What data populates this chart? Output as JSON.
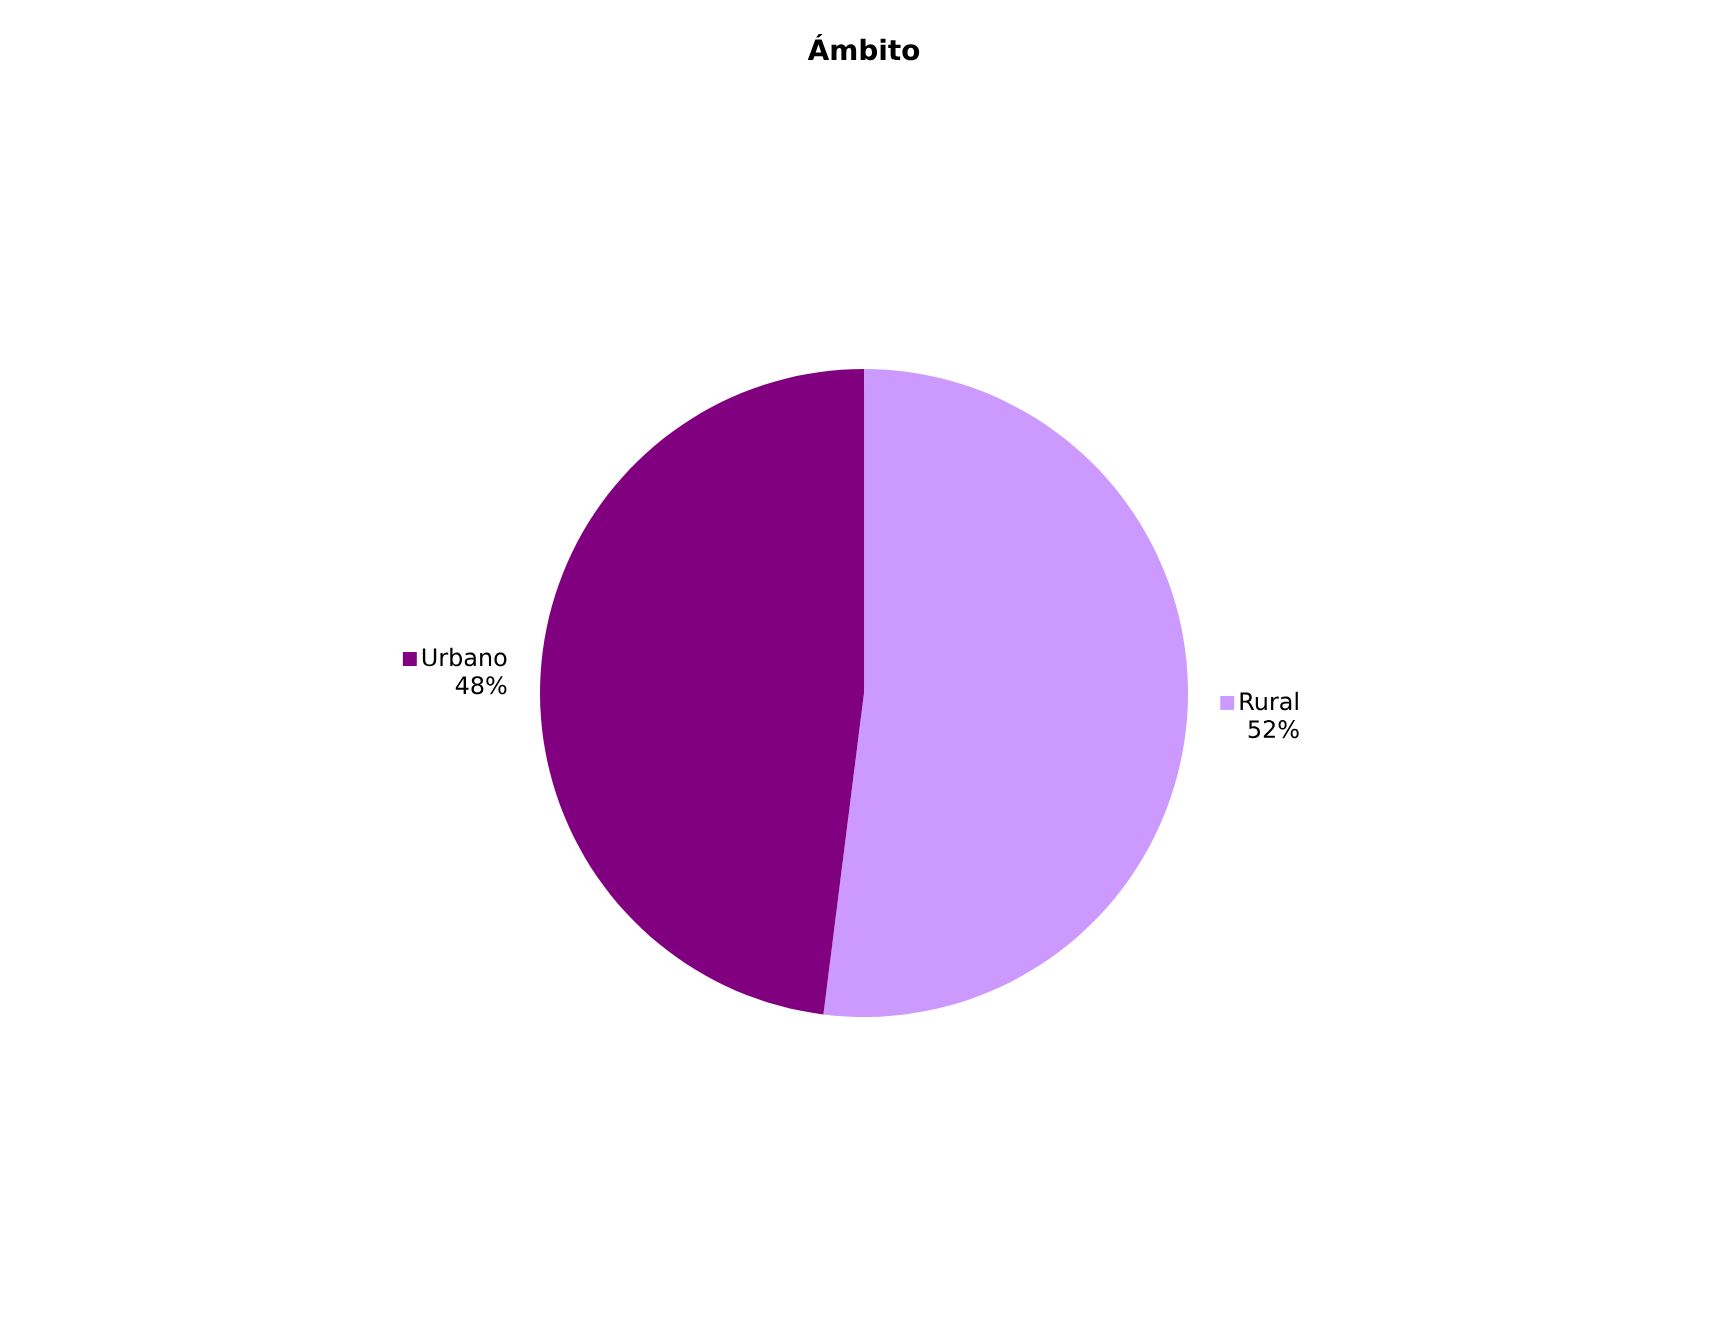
{
  "chart_data": {
    "type": "pie",
    "title": "Ámbito",
    "categories": [
      "Rural",
      "Urbano"
    ],
    "values": [
      52,
      48
    ],
    "value_labels": [
      "52%",
      "48%"
    ],
    "colors": [
      "#cc99ff",
      "#800080"
    ],
    "legend": "right"
  }
}
